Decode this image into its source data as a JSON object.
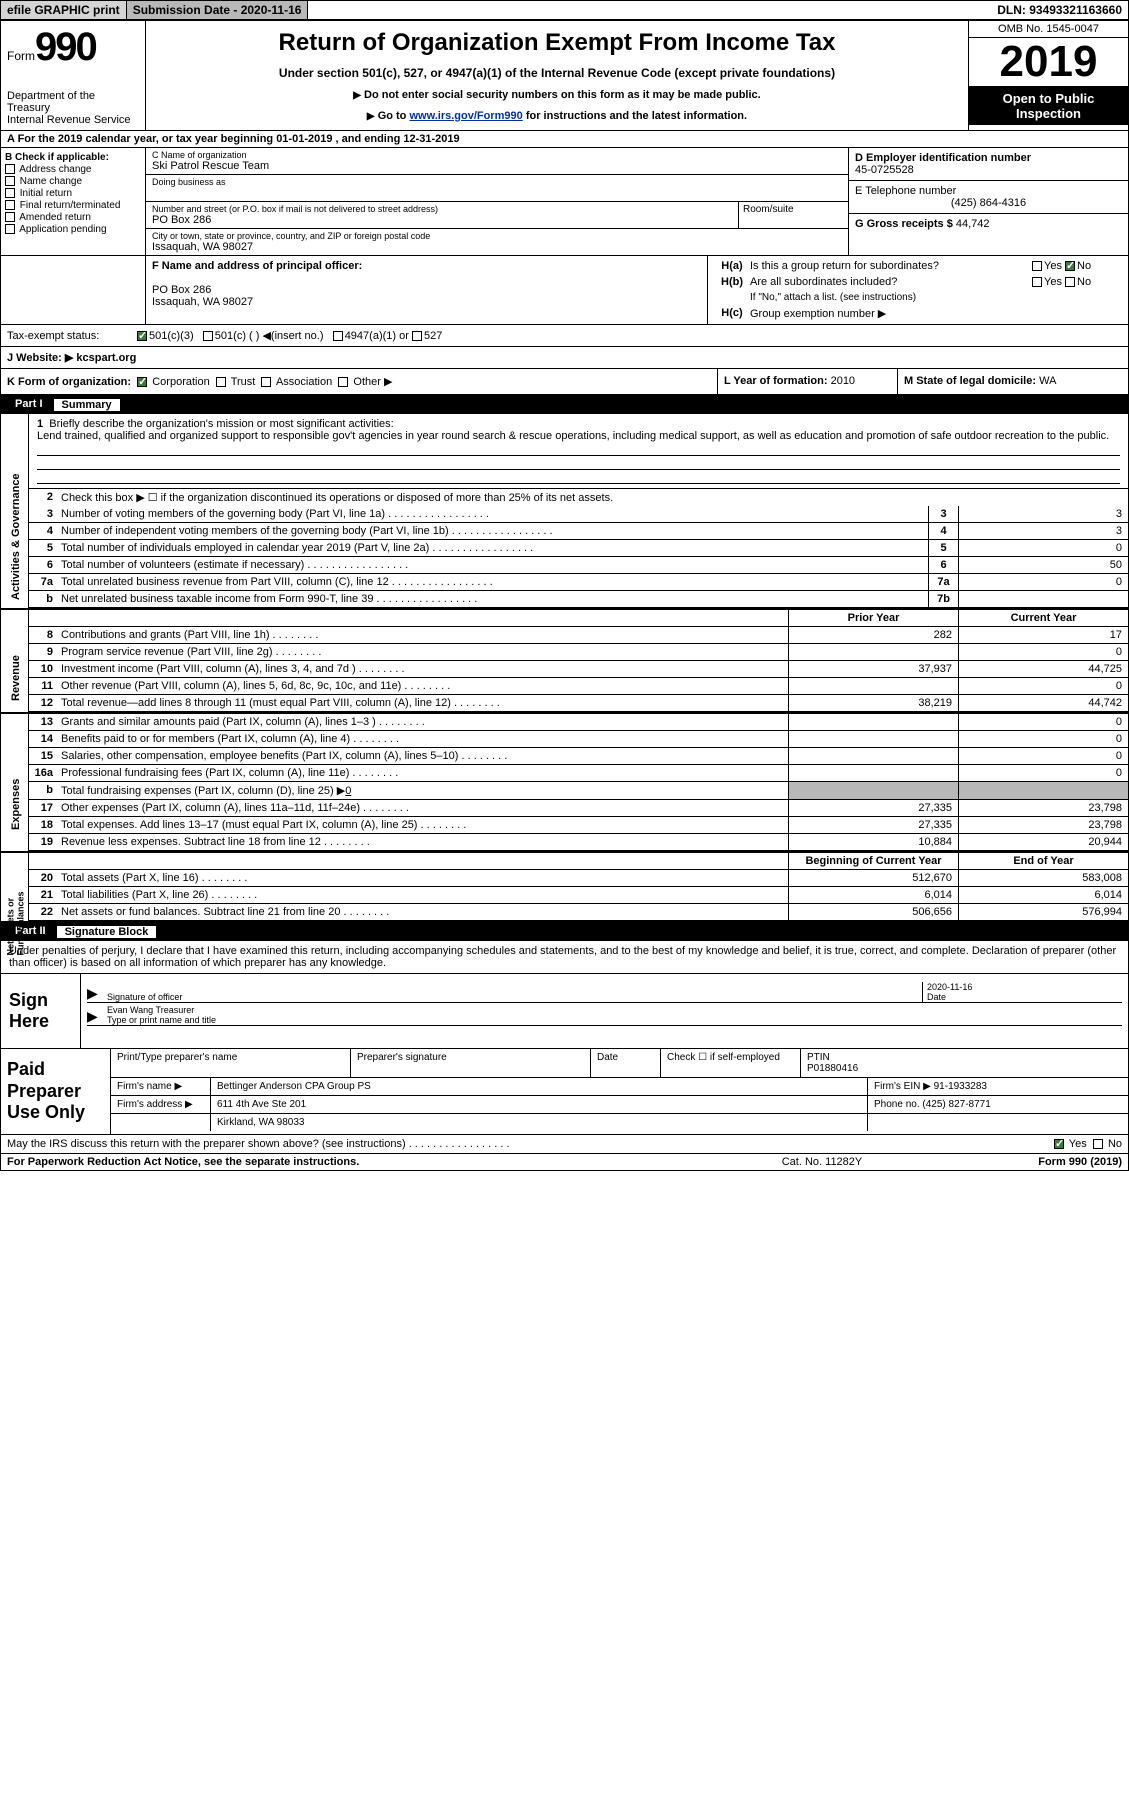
{
  "top": {
    "efile": "efile GRAPHIC print",
    "btn": "Submission Date - 2020-11-16",
    "dln": "DLN: 93493321163660"
  },
  "header": {
    "form_word": "Form",
    "form_num": "990",
    "dept": "Department of the Treasury\nInternal Revenue Service",
    "title": "Return of Organization Exempt From Income Tax",
    "sub": "Under section 501(c), 527, or 4947(a)(1) of the Internal Revenue Code (except private foundations)",
    "note1": "Do not enter social security numbers on this form as it may be made public.",
    "note2_pre": "Go to ",
    "note2_link": "www.irs.gov/Form990",
    "note2_post": " for instructions and the latest information.",
    "omb": "OMB No. 1545-0047",
    "year": "2019",
    "open1": "Open to Public",
    "open2": "Inspection"
  },
  "period": "A For the 2019 calendar year, or tax year beginning 01-01-2019    , and ending 12-31-2019",
  "b": {
    "lbl": "B Check if applicable:",
    "opts": [
      "Address change",
      "Name change",
      "Initial return",
      "Final return/terminated",
      "Amended return",
      "Application pending"
    ]
  },
  "c": {
    "lbl": "C Name of organization",
    "name": "Ski Patrol Rescue Team",
    "dba_lbl": "Doing business as",
    "addr_lbl": "Number and street (or P.O. box if mail is not delivered to street address)",
    "addr": "PO Box 286",
    "room_lbl": "Room/suite",
    "city_lbl": "City or town, state or province, country, and ZIP or foreign postal code",
    "city": "Issaquah, WA  98027"
  },
  "d": {
    "lbl": "D Employer identification number",
    "val": "45-0725528"
  },
  "e": {
    "lbl": "E Telephone number",
    "val": "(425) 864-4316"
  },
  "g": {
    "lbl": "G Gross receipts $",
    "val": "44,742"
  },
  "f": {
    "lbl": "F  Name and address of principal officer:",
    "addr1": "PO Box 286",
    "addr2": "Issaquah, WA  98027"
  },
  "h": {
    "a": "Is this a group return for subordinates?",
    "b": "Are all subordinates included?",
    "b_note": "If \"No,\" attach a list. (see instructions)",
    "c": "Group exemption number ▶",
    "yes": "Yes",
    "no": "No"
  },
  "i": {
    "lbl": "Tax-exempt status:",
    "o1": "501(c)(3)",
    "o2": "501(c) (  ) ◀(insert no.)",
    "o3": "4947(a)(1) or",
    "o4": "527"
  },
  "j": {
    "lbl": "J   Website: ▶",
    "val": "kcspart.org"
  },
  "k": {
    "lbl": "K Form of organization:",
    "o1": "Corporation",
    "o2": "Trust",
    "o3": "Association",
    "o4": "Other ▶"
  },
  "l": {
    "lbl": "L Year of formation:",
    "val": "2010"
  },
  "m": {
    "lbl": "M State of legal domicile:",
    "val": "WA"
  },
  "part1": {
    "num": "Part I",
    "title": "Summary"
  },
  "mission": {
    "lbl": "Briefly describe the organization's mission or most significant activities:",
    "text": "Lend trained, qualified and organized support to responsible gov't agencies in year round search & rescue operations, including medical support, as well as education and promotion of safe outdoor recreation to the public."
  },
  "line2": "Check this box ▶ ☐ if the organization discontinued its operations or disposed of more than 25% of its net assets.",
  "ag_lines": [
    {
      "n": "3",
      "d": "Number of voting members of the governing body (Part VI, line 1a)",
      "box": "3",
      "v": "3"
    },
    {
      "n": "4",
      "d": "Number of independent voting members of the governing body (Part VI, line 1b)",
      "box": "4",
      "v": "3"
    },
    {
      "n": "5",
      "d": "Total number of individuals employed in calendar year 2019 (Part V, line 2a)",
      "box": "5",
      "v": "0"
    },
    {
      "n": "6",
      "d": "Total number of volunteers (estimate if necessary)",
      "box": "6",
      "v": "50"
    },
    {
      "n": "7a",
      "d": "Total unrelated business revenue from Part VIII, column (C), line 12",
      "box": "7a",
      "v": "0"
    },
    {
      "n": "b",
      "d": "Net unrelated business taxable income from Form 990-T, line 39",
      "box": "7b",
      "v": ""
    }
  ],
  "rev_hdr": {
    "a": "Prior Year",
    "b": "Current Year"
  },
  "rev_lines": [
    {
      "n": "8",
      "d": "Contributions and grants (Part VIII, line 1h)",
      "a": "282",
      "b": "17"
    },
    {
      "n": "9",
      "d": "Program service revenue (Part VIII, line 2g)",
      "a": "",
      "b": "0"
    },
    {
      "n": "10",
      "d": "Investment income (Part VIII, column (A), lines 3, 4, and 7d )",
      "a": "37,937",
      "b": "44,725"
    },
    {
      "n": "11",
      "d": "Other revenue (Part VIII, column (A), lines 5, 6d, 8c, 9c, 10c, and 11e)",
      "a": "",
      "b": "0"
    },
    {
      "n": "12",
      "d": "Total revenue—add lines 8 through 11 (must equal Part VIII, column (A), line 12)",
      "a": "38,219",
      "b": "44,742"
    }
  ],
  "exp_lines": [
    {
      "n": "13",
      "d": "Grants and similar amounts paid (Part IX, column (A), lines 1–3 )",
      "a": "",
      "b": "0"
    },
    {
      "n": "14",
      "d": "Benefits paid to or for members (Part IX, column (A), line 4)",
      "a": "",
      "b": "0"
    },
    {
      "n": "15",
      "d": "Salaries, other compensation, employee benefits (Part IX, column (A), lines 5–10)",
      "a": "",
      "b": "0"
    },
    {
      "n": "16a",
      "d": "Professional fundraising fees (Part IX, column (A), line 11e)",
      "a": "",
      "b": "0"
    }
  ],
  "line16b": {
    "n": "b",
    "d": "Total fundraising expenses (Part IX, column (D), line 25) ▶",
    "v": "0"
  },
  "exp_lines2": [
    {
      "n": "17",
      "d": "Other expenses (Part IX, column (A), lines 11a–11d, 11f–24e)",
      "a": "27,335",
      "b": "23,798"
    },
    {
      "n": "18",
      "d": "Total expenses. Add lines 13–17 (must equal Part IX, column (A), line 25)",
      "a": "27,335",
      "b": "23,798"
    },
    {
      "n": "19",
      "d": "Revenue less expenses. Subtract line 18 from line 12",
      "a": "10,884",
      "b": "20,944"
    }
  ],
  "na_hdr": {
    "a": "Beginning of Current Year",
    "b": "End of Year"
  },
  "na_lines": [
    {
      "n": "20",
      "d": "Total assets (Part X, line 16)",
      "a": "512,670",
      "b": "583,008"
    },
    {
      "n": "21",
      "d": "Total liabilities (Part X, line 26)",
      "a": "6,014",
      "b": "6,014"
    },
    {
      "n": "22",
      "d": "Net assets or fund balances. Subtract line 21 from line 20",
      "a": "506,656",
      "b": "576,994"
    }
  ],
  "part2": {
    "num": "Part II",
    "title": "Signature Block"
  },
  "perjury": "Under penalties of perjury, I declare that I have examined this return, including accompanying schedules and statements, and to the best of my knowledge and belief, it is true, correct, and complete. Declaration of preparer (other than officer) is based on all information of which preparer has any knowledge.",
  "sign": {
    "here": "Sign Here",
    "sig_lbl": "Signature of officer",
    "date_lbl": "Date",
    "date_val": "2020-11-16",
    "name": "Evan Wang  Treasurer",
    "name_lbl": "Type or print name and title"
  },
  "paid": {
    "title": "Paid Preparer Use Only",
    "h1": "Print/Type preparer's name",
    "h2": "Preparer's signature",
    "h3": "Date",
    "h4_pre": "Check ☐ if self-employed",
    "h5": "PTIN",
    "ptin": "P01880416",
    "firm_lbl": "Firm's name    ▶",
    "firm": "Bettinger Anderson CPA Group PS",
    "ein_lbl": "Firm's EIN ▶",
    "ein": "91-1933283",
    "addr_lbl": "Firm's address ▶",
    "addr1": "611 4th Ave Ste 201",
    "addr2": "Kirkland, WA  98033",
    "phone_lbl": "Phone no.",
    "phone": "(425) 827-8771"
  },
  "discuss": "May the IRS discuss this return with the preparer shown above? (see instructions)",
  "footer": {
    "l": "For Paperwork Reduction Act Notice, see the separate instructions.",
    "c": "Cat. No. 11282Y",
    "r": "Form 990 (2019)"
  }
}
